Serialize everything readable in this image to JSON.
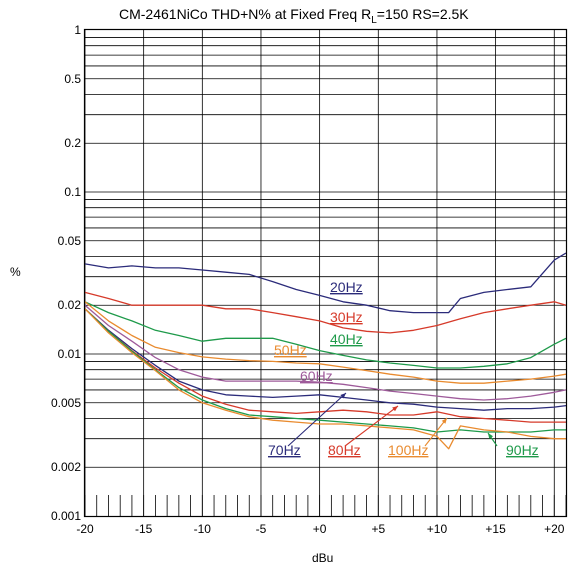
{
  "chart_data": {
    "type": "line",
    "title": {
      "main": "CM-2461NiCo   THD+N% at Fixed Freq  R",
      "sub": "L",
      "rest": "=150  RS=2.5K"
    },
    "xlabel": "dBu",
    "ylabel": "%",
    "x_scale": "linear",
    "y_scale": "log",
    "xlim": [
      -20,
      21
    ],
    "ylim": [
      0.001,
      1
    ],
    "x_ticks": [
      {
        "value": -20,
        "label": "-20"
      },
      {
        "value": -15,
        "label": "-15"
      },
      {
        "value": -10,
        "label": "-10"
      },
      {
        "value": -5,
        "label": "-5"
      },
      {
        "value": 0,
        "label": "+0"
      },
      {
        "value": 5,
        "label": "+5"
      },
      {
        "value": 10,
        "label": "+10"
      },
      {
        "value": 15,
        "label": "+15"
      },
      {
        "value": 20,
        "label": "+20"
      }
    ],
    "y_ticks": [
      {
        "value": 1,
        "label": "1"
      },
      {
        "value": 0.5,
        "label": "0.5"
      },
      {
        "value": 0.2,
        "label": "0.2"
      },
      {
        "value": 0.1,
        "label": "0.1"
      },
      {
        "value": 0.05,
        "label": "0.05"
      },
      {
        "value": 0.02,
        "label": "0.02"
      },
      {
        "value": 0.01,
        "label": "0.01"
      },
      {
        "value": 0.005,
        "label": "0.005"
      },
      {
        "value": 0.002,
        "label": "0.002"
      },
      {
        "value": 0.001,
        "label": "0.001"
      }
    ],
    "grid": true,
    "series": [
      {
        "name": "20Hz",
        "color": "#2b2b7a",
        "x": [
          -20,
          -18,
          -16,
          -14,
          -12,
          -10,
          -8,
          -6,
          -4,
          -2,
          0,
          2,
          4,
          6,
          8,
          10,
          11,
          12,
          14,
          16,
          18,
          20,
          21
        ],
        "y": [
          0.036,
          0.034,
          0.035,
          0.034,
          0.034,
          0.033,
          0.032,
          0.031,
          0.028,
          0.025,
          0.023,
          0.021,
          0.02,
          0.0185,
          0.018,
          0.018,
          0.018,
          0.022,
          0.024,
          0.025,
          0.026,
          0.038,
          0.042
        ]
      },
      {
        "name": "30Hz",
        "color": "#d63a2a",
        "x": [
          -20,
          -18,
          -16,
          -14,
          -12,
          -10,
          -8,
          -6,
          -4,
          -2,
          0,
          2,
          4,
          6,
          8,
          10,
          12,
          14,
          16,
          18,
          20,
          21
        ],
        "y": [
          0.024,
          0.022,
          0.02,
          0.02,
          0.02,
          0.02,
          0.019,
          0.019,
          0.018,
          0.017,
          0.016,
          0.0145,
          0.0138,
          0.0135,
          0.014,
          0.015,
          0.0165,
          0.018,
          0.019,
          0.02,
          0.021,
          0.02
        ]
      },
      {
        "name": "40Hz",
        "color": "#1e9a4a",
        "x": [
          -20,
          -18,
          -16,
          -14,
          -12,
          -10,
          -8,
          -6,
          -4,
          -2,
          0,
          2,
          4,
          6,
          8,
          10,
          12,
          14,
          16,
          18,
          20,
          21
        ],
        "y": [
          0.021,
          0.018,
          0.016,
          0.014,
          0.013,
          0.012,
          0.0125,
          0.0125,
          0.0125,
          0.0115,
          0.0105,
          0.0098,
          0.0092,
          0.0088,
          0.0085,
          0.0082,
          0.0082,
          0.0084,
          0.0087,
          0.0095,
          0.0115,
          0.0125
        ]
      },
      {
        "name": "50Hz",
        "color": "#e98b2f",
        "x": [
          -20,
          -18,
          -16,
          -14,
          -12,
          -10,
          -8,
          -6,
          -4,
          -2,
          0,
          2,
          4,
          6,
          8,
          10,
          12,
          14,
          16,
          18,
          20,
          21
        ],
        "y": [
          0.021,
          0.016,
          0.013,
          0.011,
          0.0102,
          0.0096,
          0.0093,
          0.0091,
          0.009,
          0.0088,
          0.0087,
          0.0083,
          0.0079,
          0.0075,
          0.0072,
          0.0068,
          0.0066,
          0.0066,
          0.0068,
          0.007,
          0.0073,
          0.0075
        ]
      },
      {
        "name": "60Hz",
        "color": "#9e5a9a",
        "x": [
          -20,
          -18,
          -16,
          -14,
          -12,
          -10,
          -8,
          -6,
          -4,
          -2,
          0,
          2,
          4,
          6,
          8,
          10,
          12,
          14,
          16,
          18,
          20,
          21
        ],
        "y": [
          0.02,
          0.015,
          0.012,
          0.0095,
          0.008,
          0.0072,
          0.0068,
          0.0068,
          0.0068,
          0.0068,
          0.0067,
          0.0065,
          0.0062,
          0.0059,
          0.0057,
          0.0055,
          0.0053,
          0.0052,
          0.0053,
          0.0055,
          0.0058,
          0.006
        ]
      },
      {
        "name": "70Hz",
        "color": "#2b2b7a",
        "x": [
          -20,
          -18,
          -16,
          -14,
          -12,
          -10,
          -8,
          -6,
          -4,
          -2,
          0,
          2,
          4,
          6,
          8,
          10,
          12,
          14,
          16,
          18,
          20,
          21
        ],
        "y": [
          0.019,
          0.014,
          0.0108,
          0.0085,
          0.0068,
          0.006,
          0.0056,
          0.0055,
          0.0054,
          0.0055,
          0.0056,
          0.0054,
          0.0052,
          0.005,
          0.0049,
          0.0047,
          0.0046,
          0.0045,
          0.0046,
          0.0046,
          0.0047,
          0.0048
        ]
      },
      {
        "name": "80Hz",
        "color": "#d63a2a",
        "x": [
          -20,
          -18,
          -16,
          -14,
          -12,
          -10,
          -8,
          -6,
          -4,
          -2,
          0,
          2,
          4,
          6,
          8,
          10,
          12,
          14,
          16,
          18,
          20,
          21
        ],
        "y": [
          0.019,
          0.0138,
          0.0105,
          0.0082,
          0.0066,
          0.0055,
          0.0049,
          0.0045,
          0.0044,
          0.0043,
          0.0044,
          0.0045,
          0.0044,
          0.0042,
          0.0042,
          0.0044,
          0.0041,
          0.004,
          0.0039,
          0.0038,
          0.0038,
          0.0038
        ]
      },
      {
        "name": "90Hz",
        "color": "#1e9a4a",
        "x": [
          -20,
          -18,
          -16,
          -14,
          -12,
          -10,
          -8,
          -6,
          -4,
          -2,
          0,
          2,
          4,
          6,
          8,
          10,
          12,
          14,
          16,
          18,
          20,
          21
        ],
        "y": [
          0.019,
          0.0138,
          0.0104,
          0.008,
          0.0062,
          0.0052,
          0.0046,
          0.0042,
          0.0041,
          0.004,
          0.0039,
          0.0038,
          0.0037,
          0.0036,
          0.0035,
          0.0033,
          0.0034,
          0.0033,
          0.0033,
          0.0033,
          0.0034,
          0.0034
        ]
      },
      {
        "name": "100Hz",
        "color": "#e98b2f",
        "x": [
          -20,
          -18,
          -16,
          -14,
          -12,
          -10,
          -8,
          -6,
          -4,
          -2,
          0,
          2,
          4,
          6,
          8,
          10,
          11,
          12,
          14,
          16,
          18,
          20,
          21
        ],
        "y": [
          0.019,
          0.0135,
          0.0102,
          0.0079,
          0.006,
          0.005,
          0.0045,
          0.0041,
          0.0039,
          0.0038,
          0.0037,
          0.0037,
          0.0036,
          0.0035,
          0.0034,
          0.0031,
          0.0026,
          0.0036,
          0.0034,
          0.0033,
          0.0031,
          0.003,
          0.003
        ]
      }
    ],
    "annotations": [
      {
        "series": "20Hz",
        "text": "20Hz",
        "pointer": false
      },
      {
        "series": "30Hz",
        "text": "30Hz",
        "pointer": false
      },
      {
        "series": "40Hz",
        "text": "40Hz",
        "pointer": false
      },
      {
        "series": "50Hz",
        "text": "50Hz",
        "pointer": false
      },
      {
        "series": "60Hz",
        "text": "60Hz",
        "pointer": false
      },
      {
        "series": "70Hz",
        "text": "70Hz",
        "pointer": true
      },
      {
        "series": "80Hz",
        "text": "80Hz",
        "pointer": true
      },
      {
        "series": "100Hz",
        "text": "100Hz",
        "pointer": true
      },
      {
        "series": "90Hz",
        "text": "90Hz",
        "pointer": true
      }
    ]
  }
}
